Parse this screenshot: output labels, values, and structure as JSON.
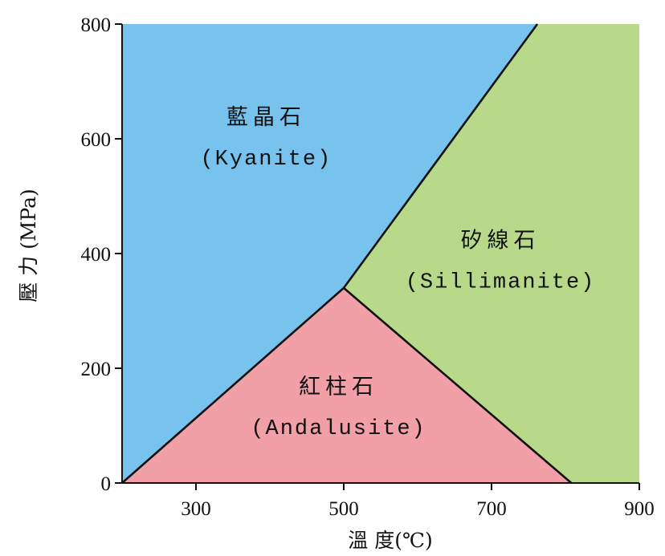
{
  "chart_data": {
    "type": "area",
    "title": "",
    "xlabel": "溫 度(℃)",
    "ylabel": "壓 力 (MPa)",
    "xlim": [
      200,
      900
    ],
    "ylim": [
      0,
      800
    ],
    "x_ticks": [
      300,
      500,
      700,
      900
    ],
    "y_ticks": [
      0,
      200,
      400,
      600,
      800
    ],
    "grid": false,
    "triple_point": {
      "x": 500,
      "y": 340
    },
    "boundaries": [
      {
        "name": "kyanite-andalusite",
        "points": [
          [
            200,
            0
          ],
          [
            500,
            340
          ]
        ]
      },
      {
        "name": "kyanite-sillimanite",
        "points": [
          [
            500,
            340
          ],
          [
            762,
            800
          ]
        ]
      },
      {
        "name": "andalusite-sillimanite",
        "points": [
          [
            500,
            340
          ],
          [
            808,
            0
          ]
        ]
      }
    ],
    "regions": [
      {
        "id": "kyanite",
        "name_zh": "藍晶石",
        "name_en": "(Kyanite)",
        "color": "#78c3ee",
        "label_at": {
          "x": 395,
          "y": 600
        },
        "polygon": [
          [
            200,
            0
          ],
          [
            500,
            340
          ],
          [
            762,
            800
          ],
          [
            200,
            800
          ]
        ]
      },
      {
        "id": "sillimanite",
        "name_zh": "矽線石",
        "name_en": "(Sillimanite)",
        "color": "#b9d98a",
        "label_at": {
          "x": 712,
          "y": 385
        },
        "polygon": [
          [
            500,
            340
          ],
          [
            762,
            800
          ],
          [
            900,
            800
          ],
          [
            900,
            0
          ],
          [
            808,
            0
          ]
        ]
      },
      {
        "id": "andalusite",
        "name_zh": "紅柱石",
        "name_en": "(Andalusite)",
        "color": "#f0a0a6",
        "label_at": {
          "x": 493,
          "y": 130
        },
        "polygon": [
          [
            200,
            0
          ],
          [
            500,
            340
          ],
          [
            808,
            0
          ]
        ]
      }
    ]
  }
}
